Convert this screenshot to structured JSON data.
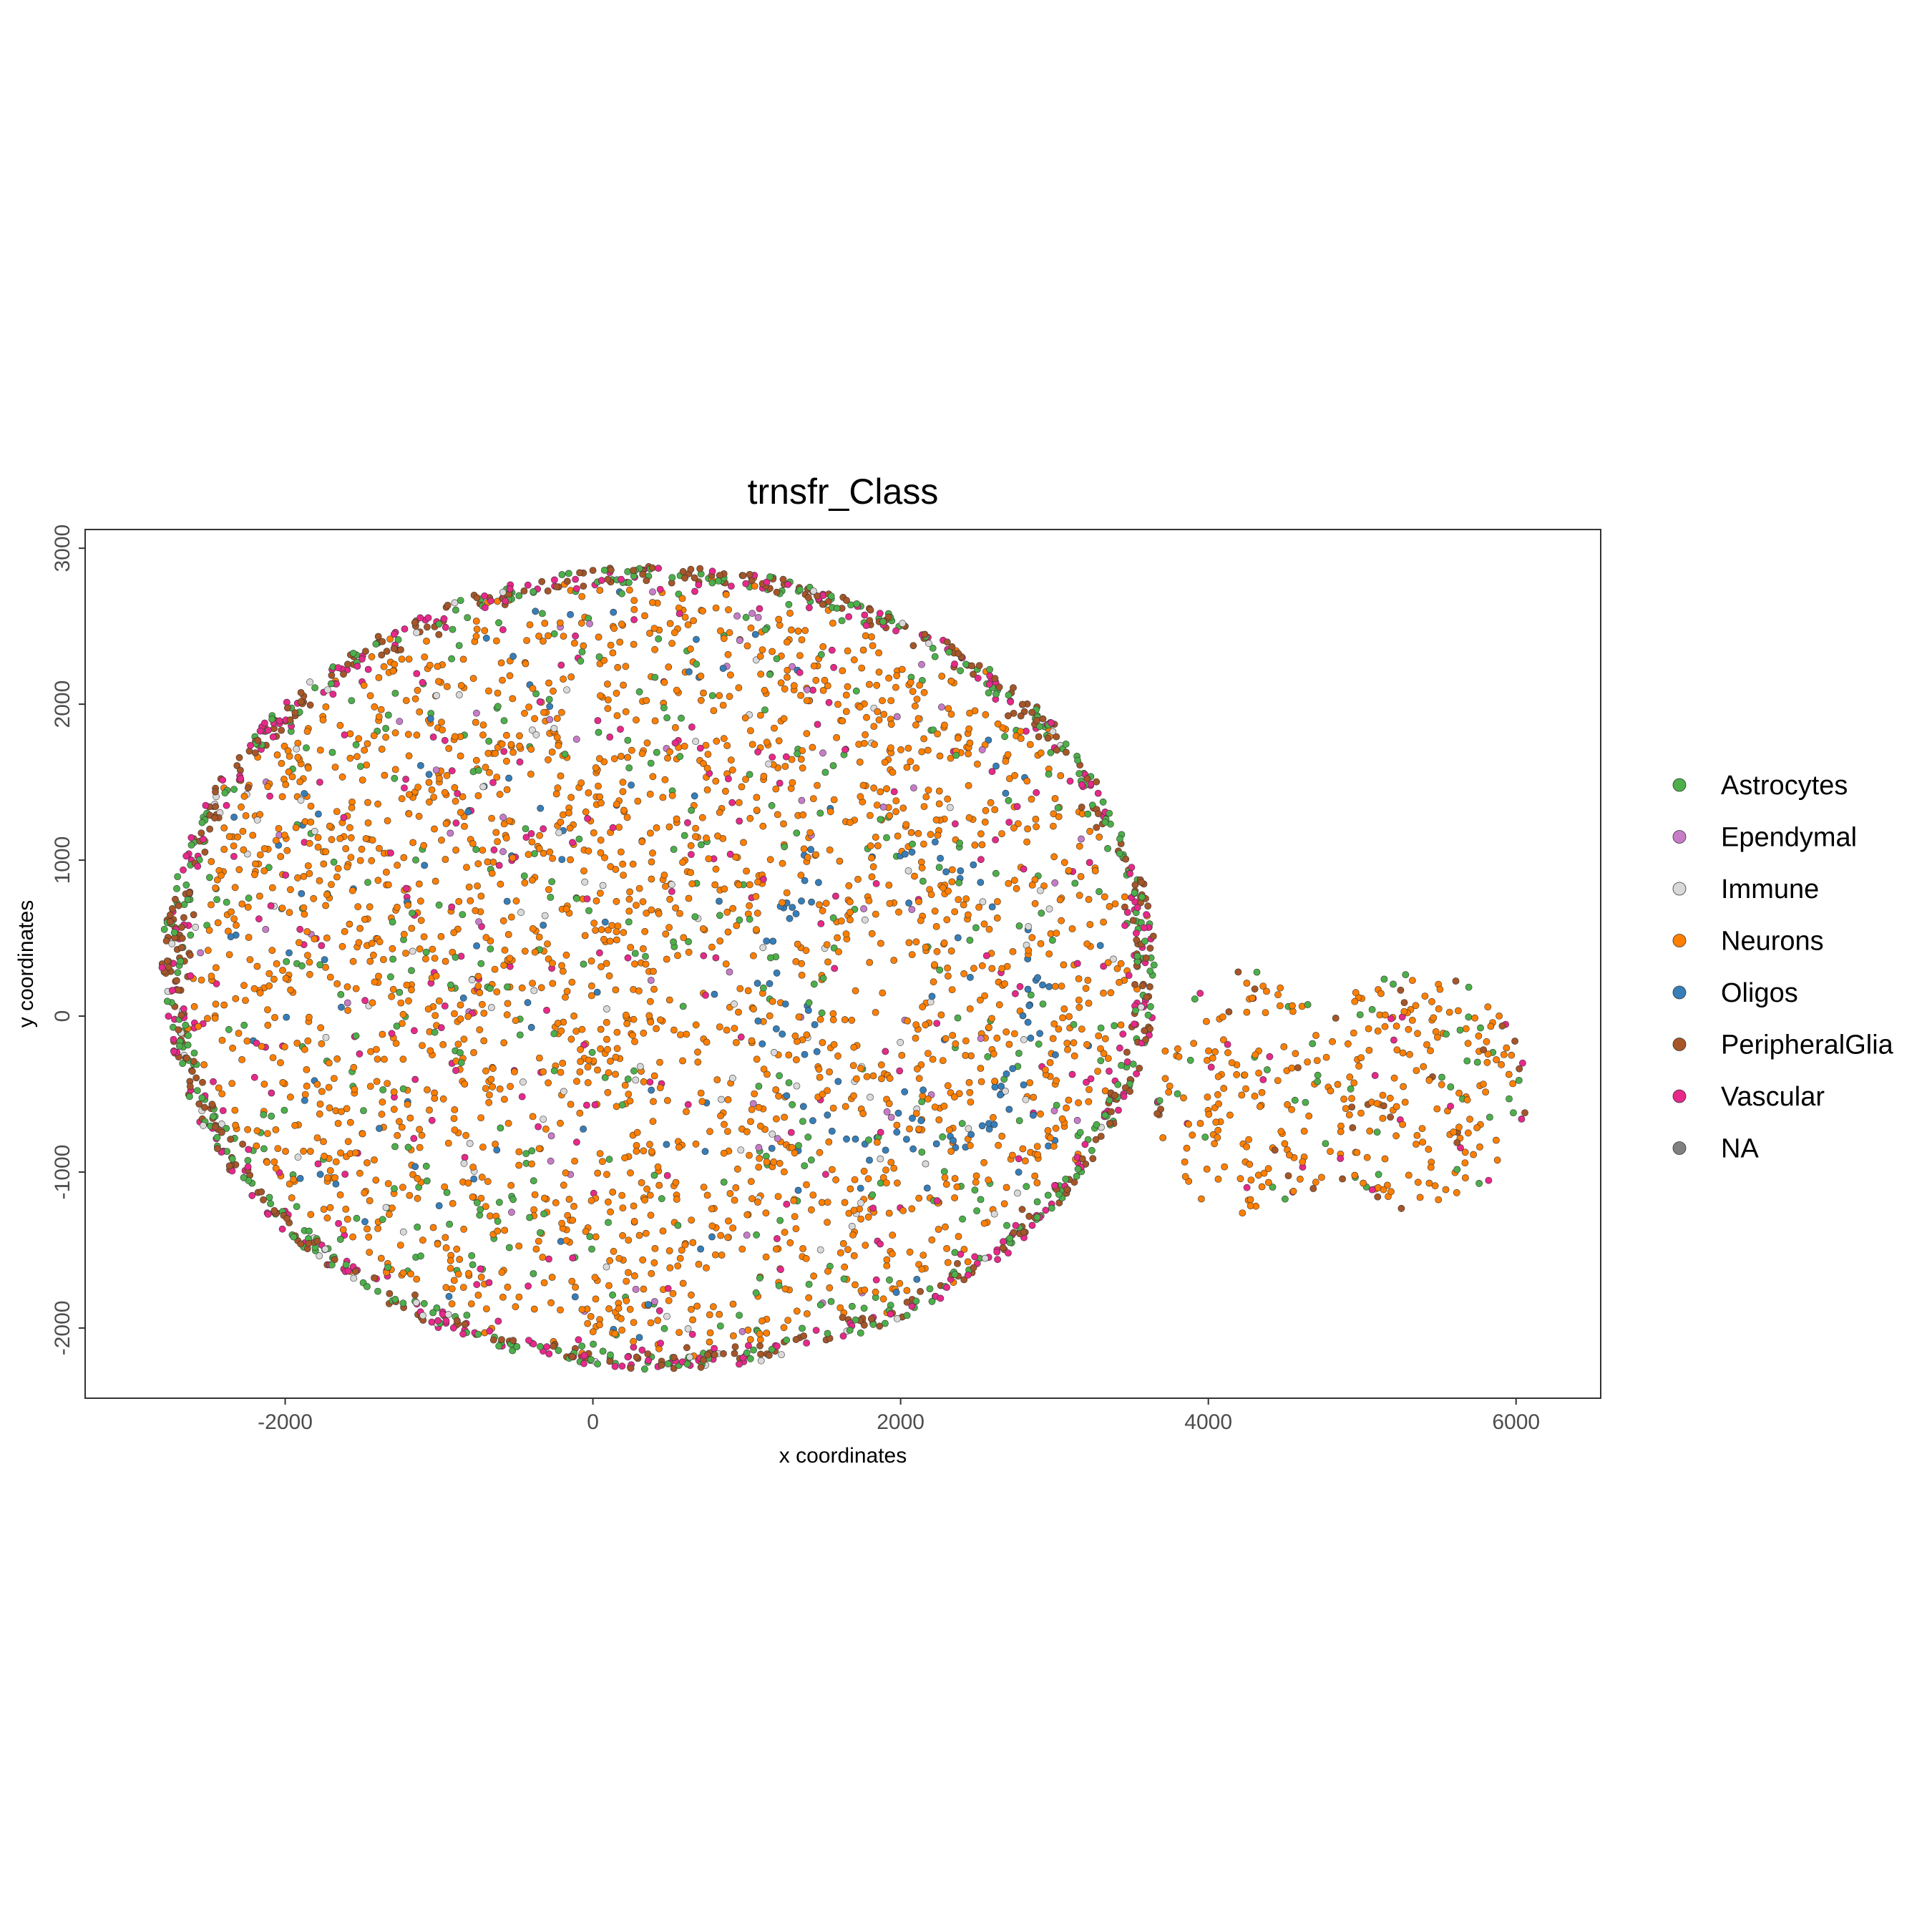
{
  "chart_data": {
    "type": "scatter",
    "title": "trnsfr_Class",
    "xlabel": "x coordinates",
    "ylabel": "y coordinates",
    "xlim": [
      -3300,
      6550
    ],
    "ylim": [
      -2450,
      3120
    ],
    "x_ticks": [
      -2000,
      0,
      2000,
      4000,
      6000
    ],
    "x_tick_labels": [
      "-2000",
      "0",
      "2000",
      "4000",
      "6000"
    ],
    "y_ticks": [
      -2000,
      -1000,
      0,
      1000,
      2000,
      3000
    ],
    "y_tick_labels": [
      "-2000",
      "-1000",
      "0",
      "1000",
      "2000",
      "3000"
    ],
    "grid": false,
    "legend_position": "right",
    "point_outline_color": "#333333",
    "series": [
      {
        "name": "Astrocytes",
        "color": "#4DAF4A",
        "approx_share": 0.12
      },
      {
        "name": "Ependymal",
        "color": "#C77CC7",
        "approx_share": 0.004
      },
      {
        "name": "Immune",
        "color": "#D9D9D9",
        "approx_share": 0.01
      },
      {
        "name": "Neurons",
        "color": "#FF7F00",
        "approx_share": 0.66
      },
      {
        "name": "Oligos",
        "color": "#377EB8",
        "approx_share": 0.08
      },
      {
        "name": "PeripheralGlia",
        "color": "#A65628",
        "approx_share": 0.05
      },
      {
        "name": "Vascular",
        "color": "#E7298A",
        "approx_share": 0.07
      },
      {
        "name": "NA",
        "color": "#808080",
        "approx_share": 0.0
      }
    ],
    "regions": {
      "main_tissue": {
        "center": [
          430,
          310
        ],
        "radius_x": 3200,
        "radius_y": 2550
      },
      "inner_ring": {
        "center": [
          2000,
          100
        ],
        "radius_x": 850,
        "radius_y": 950
      },
      "inner_hole": {
        "center": [
          1850,
          250
        ],
        "radius_x": 230,
        "radius_y": 380
      },
      "right_lobe_1": {
        "center": [
          4280,
          -520
        ],
        "radius_x": 620,
        "radius_y": 820
      },
      "right_lobe_2": {
        "center": [
          5350,
          -480
        ],
        "radius_x": 720,
        "radius_y": 780
      }
    }
  }
}
